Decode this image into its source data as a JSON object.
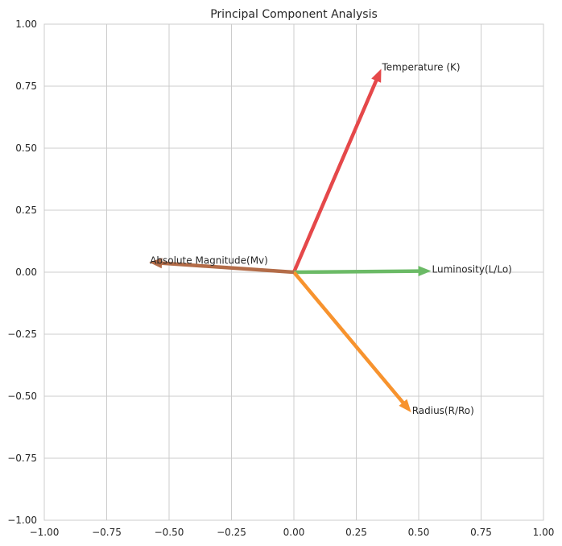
{
  "chart_data": {
    "type": "biplot",
    "title": "Principal Component Analysis",
    "xlabel": "",
    "ylabel": "",
    "xlim": [
      -1.0,
      1.0
    ],
    "ylim": [
      -1.0,
      1.0
    ],
    "xticks": [
      -1.0,
      -0.75,
      -0.5,
      -0.25,
      0.0,
      0.25,
      0.5,
      0.75,
      1.0
    ],
    "yticks": [
      -1.0,
      -0.75,
      -0.5,
      -0.25,
      0.0,
      0.25,
      0.5,
      0.75,
      1.0
    ],
    "xtick_labels": [
      "−1.00",
      "−0.75",
      "−0.50",
      "−0.25",
      "0.00",
      "0.25",
      "0.50",
      "0.75",
      "1.00"
    ],
    "ytick_labels": [
      "−1.00",
      "−0.75",
      "−0.50",
      "−0.25",
      "0.00",
      "0.25",
      "0.50",
      "0.75",
      "1.00"
    ],
    "grid": true,
    "vectors": [
      {
        "label": "Temperature (K)",
        "x": 0.35,
        "y": 0.82,
        "color": "#e5484a"
      },
      {
        "label": "Luminosity(L/Lo)",
        "x": 0.55,
        "y": 0.005,
        "color": "#6bba66"
      },
      {
        "label": "Radius(R/Ro)",
        "x": 0.47,
        "y": -0.565,
        "color": "#f7932e"
      },
      {
        "label": "Absolute Magnitude(Mv)",
        "x": -0.58,
        "y": 0.04,
        "color": "#b36c48"
      }
    ]
  }
}
